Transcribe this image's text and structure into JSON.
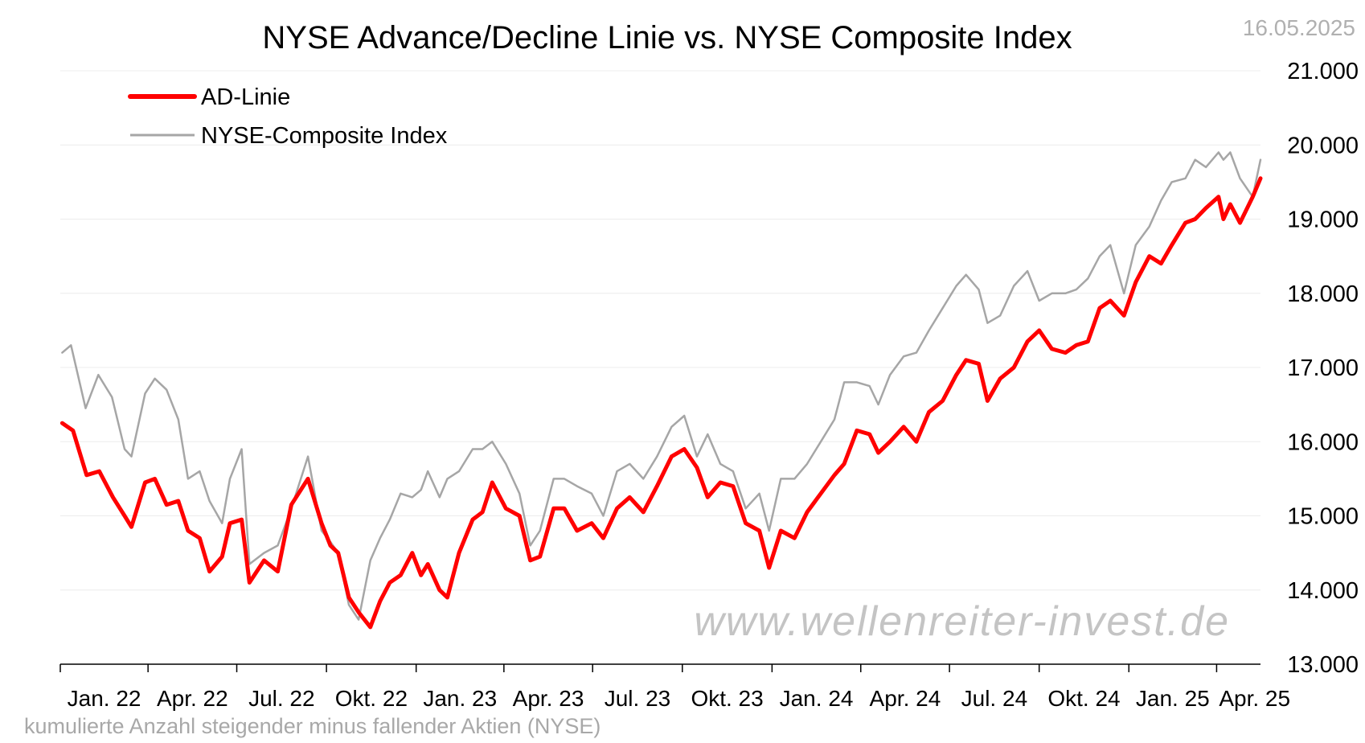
{
  "chart_data": {
    "type": "line",
    "title": "NYSE Advance/Decline Linie vs. NYSE Composite Index",
    "date_stamp": "16.05.2025",
    "watermark": "www.wellenreiter-invest.de",
    "footnote": "kumulierte Anzahl steigender minus fallender Aktien (NYSE)",
    "x_ticks": [
      "Jan. 22",
      "Apr. 22",
      "Jul. 22",
      "Okt. 22",
      "Jan. 23",
      "Apr. 23",
      "Jul. 23",
      "Okt. 23",
      "Jan. 24",
      "Apr. 24",
      "Jul. 24",
      "Okt. 24",
      "Jan. 25",
      "Apr. 25"
    ],
    "y_ticks": [
      "13.000",
      "14.000",
      "15.000",
      "16.000",
      "17.000",
      "18.000",
      "19.000",
      "20.000",
      "21.000"
    ],
    "ylim": [
      13000,
      21000
    ],
    "xlim": [
      "2022-01-01",
      "2025-05-16"
    ],
    "grid": "horizontal",
    "legend_position": "top-left",
    "series": [
      {
        "name": "AD-Linie",
        "color": "#ff0000",
        "values": [
          [
            "2022-01-03",
            16250
          ],
          [
            "2022-01-14",
            16150
          ],
          [
            "2022-01-28",
            15550
          ],
          [
            "2022-02-10",
            15600
          ],
          [
            "2022-02-24",
            15250
          ],
          [
            "2022-03-08",
            15000
          ],
          [
            "2022-03-15",
            14850
          ],
          [
            "2022-03-29",
            15450
          ],
          [
            "2022-04-08",
            15500
          ],
          [
            "2022-04-20",
            15150
          ],
          [
            "2022-05-02",
            15200
          ],
          [
            "2022-05-12",
            14800
          ],
          [
            "2022-05-24",
            14700
          ],
          [
            "2022-06-03",
            14250
          ],
          [
            "2022-06-16",
            14450
          ],
          [
            "2022-06-24",
            14900
          ],
          [
            "2022-07-06",
            14950
          ],
          [
            "2022-07-14",
            14100
          ],
          [
            "2022-07-29",
            14400
          ],
          [
            "2022-08-12",
            14250
          ],
          [
            "2022-08-26",
            15150
          ],
          [
            "2022-09-12",
            15500
          ],
          [
            "2022-09-26",
            14900
          ],
          [
            "2022-10-05",
            14600
          ],
          [
            "2022-10-13",
            14500
          ],
          [
            "2022-10-24",
            13900
          ],
          [
            "2022-11-03",
            13700
          ],
          [
            "2022-11-15",
            13500
          ],
          [
            "2022-11-25",
            13850
          ],
          [
            "2022-12-05",
            14100
          ],
          [
            "2022-12-16",
            14200
          ],
          [
            "2022-12-28",
            14500
          ],
          [
            "2023-01-06",
            14200
          ],
          [
            "2023-01-13",
            14350
          ],
          [
            "2023-01-25",
            14000
          ],
          [
            "2023-02-02",
            13900
          ],
          [
            "2023-02-14",
            14500
          ],
          [
            "2023-02-28",
            14950
          ],
          [
            "2023-03-10",
            15050
          ],
          [
            "2023-03-20",
            15450
          ],
          [
            "2023-04-03",
            15100
          ],
          [
            "2023-04-17",
            15000
          ],
          [
            "2023-04-28",
            14400
          ],
          [
            "2023-05-08",
            14450
          ],
          [
            "2023-05-22",
            15100
          ],
          [
            "2023-06-02",
            15100
          ],
          [
            "2023-06-15",
            14800
          ],
          [
            "2023-06-30",
            14900
          ],
          [
            "2023-07-12",
            14700
          ],
          [
            "2023-07-26",
            15100
          ],
          [
            "2023-08-08",
            15250
          ],
          [
            "2023-08-22",
            15050
          ],
          [
            "2023-09-05",
            15400
          ],
          [
            "2023-09-20",
            15800
          ],
          [
            "2023-10-03",
            15900
          ],
          [
            "2023-10-16",
            15650
          ],
          [
            "2023-10-27",
            15250
          ],
          [
            "2023-11-09",
            15450
          ],
          [
            "2023-11-22",
            15400
          ],
          [
            "2023-12-05",
            14900
          ],
          [
            "2023-12-19",
            14800
          ],
          [
            "2023-12-29",
            14300
          ],
          [
            "2024-01-10",
            14800
          ],
          [
            "2024-01-24",
            14700
          ],
          [
            "2024-02-06",
            15050
          ],
          [
            "2024-02-20",
            15300
          ],
          [
            "2024-03-05",
            15550
          ],
          [
            "2024-03-15",
            15700
          ],
          [
            "2024-03-28",
            16150
          ],
          [
            "2024-04-10",
            16100
          ],
          [
            "2024-04-19",
            15850
          ],
          [
            "2024-05-01",
            16000
          ],
          [
            "2024-05-15",
            16200
          ],
          [
            "2024-05-28",
            16000
          ],
          [
            "2024-06-10",
            16400
          ],
          [
            "2024-06-24",
            16550
          ],
          [
            "2024-07-08",
            16900
          ],
          [
            "2024-07-18",
            17100
          ],
          [
            "2024-07-31",
            17050
          ],
          [
            "2024-08-09",
            16550
          ],
          [
            "2024-08-22",
            16850
          ],
          [
            "2024-09-05",
            17000
          ],
          [
            "2024-09-19",
            17350
          ],
          [
            "2024-10-01",
            17500
          ],
          [
            "2024-10-14",
            17250
          ],
          [
            "2024-10-28",
            17200
          ],
          [
            "2024-11-08",
            17300
          ],
          [
            "2024-11-20",
            17350
          ],
          [
            "2024-12-02",
            17800
          ],
          [
            "2024-12-13",
            17900
          ],
          [
            "2024-12-27",
            17700
          ],
          [
            "2025-01-08",
            18150
          ],
          [
            "2025-01-22",
            18500
          ],
          [
            "2025-02-03",
            18400
          ],
          [
            "2025-02-14",
            18650
          ],
          [
            "2025-02-28",
            18950
          ],
          [
            "2025-03-10",
            19000
          ],
          [
            "2025-03-21",
            19150
          ],
          [
            "2025-04-03",
            19300
          ],
          [
            "2025-04-08",
            19000
          ],
          [
            "2025-04-15",
            19200
          ],
          [
            "2025-04-25",
            18950
          ],
          [
            "2025-05-08",
            19300
          ],
          [
            "2025-05-16",
            19550
          ]
        ]
      },
      {
        "name": "NYSE-Composite Index",
        "color": "#a6a6a6",
        "values": [
          [
            "2022-01-03",
            17200
          ],
          [
            "2022-01-12",
            17300
          ],
          [
            "2022-01-27",
            16450
          ],
          [
            "2022-02-09",
            16900
          ],
          [
            "2022-02-23",
            16600
          ],
          [
            "2022-03-08",
            15900
          ],
          [
            "2022-03-15",
            15800
          ],
          [
            "2022-03-29",
            16650
          ],
          [
            "2022-04-08",
            16850
          ],
          [
            "2022-04-20",
            16700
          ],
          [
            "2022-05-02",
            16300
          ],
          [
            "2022-05-12",
            15500
          ],
          [
            "2022-05-24",
            15600
          ],
          [
            "2022-06-03",
            15200
          ],
          [
            "2022-06-16",
            14900
          ],
          [
            "2022-06-24",
            15500
          ],
          [
            "2022-07-06",
            15900
          ],
          [
            "2022-07-14",
            14350
          ],
          [
            "2022-07-29",
            14500
          ],
          [
            "2022-08-12",
            14600
          ],
          [
            "2022-08-26",
            15100
          ],
          [
            "2022-09-12",
            15800
          ],
          [
            "2022-09-26",
            14800
          ],
          [
            "2022-10-05",
            14650
          ],
          [
            "2022-10-13",
            14500
          ],
          [
            "2022-10-24",
            13800
          ],
          [
            "2022-11-03",
            13600
          ],
          [
            "2022-11-15",
            14400
          ],
          [
            "2022-11-25",
            14700
          ],
          [
            "2022-12-05",
            14950
          ],
          [
            "2022-12-16",
            15300
          ],
          [
            "2022-12-28",
            15250
          ],
          [
            "2023-01-06",
            15350
          ],
          [
            "2023-01-13",
            15600
          ],
          [
            "2023-01-25",
            15250
          ],
          [
            "2023-02-02",
            15500
          ],
          [
            "2023-02-14",
            15600
          ],
          [
            "2023-02-28",
            15900
          ],
          [
            "2023-03-10",
            15900
          ],
          [
            "2023-03-20",
            16000
          ],
          [
            "2023-04-03",
            15700
          ],
          [
            "2023-04-17",
            15300
          ],
          [
            "2023-04-28",
            14600
          ],
          [
            "2023-05-08",
            14800
          ],
          [
            "2023-05-22",
            15500
          ],
          [
            "2023-06-02",
            15500
          ],
          [
            "2023-06-15",
            15400
          ],
          [
            "2023-06-30",
            15300
          ],
          [
            "2023-07-12",
            15000
          ],
          [
            "2023-07-26",
            15600
          ],
          [
            "2023-08-08",
            15700
          ],
          [
            "2023-08-22",
            15500
          ],
          [
            "2023-09-05",
            15800
          ],
          [
            "2023-09-20",
            16200
          ],
          [
            "2023-10-03",
            16350
          ],
          [
            "2023-10-16",
            15800
          ],
          [
            "2023-10-27",
            16100
          ],
          [
            "2023-11-09",
            15700
          ],
          [
            "2023-11-22",
            15600
          ],
          [
            "2023-12-05",
            15100
          ],
          [
            "2023-12-19",
            15300
          ],
          [
            "2023-12-29",
            14800
          ],
          [
            "2024-01-10",
            15500
          ],
          [
            "2024-01-24",
            15500
          ],
          [
            "2024-02-06",
            15700
          ],
          [
            "2024-02-20",
            16000
          ],
          [
            "2024-03-05",
            16300
          ],
          [
            "2024-03-15",
            16800
          ],
          [
            "2024-03-28",
            16800
          ],
          [
            "2024-04-10",
            16750
          ],
          [
            "2024-04-19",
            16500
          ],
          [
            "2024-05-01",
            16900
          ],
          [
            "2024-05-15",
            17150
          ],
          [
            "2024-05-28",
            17200
          ],
          [
            "2024-06-10",
            17500
          ],
          [
            "2024-06-24",
            17800
          ],
          [
            "2024-07-08",
            18100
          ],
          [
            "2024-07-18",
            18250
          ],
          [
            "2024-07-31",
            18050
          ],
          [
            "2024-08-09",
            17600
          ],
          [
            "2024-08-22",
            17700
          ],
          [
            "2024-09-05",
            18100
          ],
          [
            "2024-09-19",
            18300
          ],
          [
            "2024-10-01",
            17900
          ],
          [
            "2024-10-14",
            18000
          ],
          [
            "2024-10-28",
            18000
          ],
          [
            "2024-11-08",
            18050
          ],
          [
            "2024-11-20",
            18200
          ],
          [
            "2024-12-02",
            18500
          ],
          [
            "2024-12-13",
            18650
          ],
          [
            "2024-12-27",
            18000
          ],
          [
            "2025-01-08",
            18650
          ],
          [
            "2025-01-22",
            18900
          ],
          [
            "2025-02-03",
            19250
          ],
          [
            "2025-02-14",
            19500
          ],
          [
            "2025-02-28",
            19550
          ],
          [
            "2025-03-10",
            19800
          ],
          [
            "2025-03-21",
            19700
          ],
          [
            "2025-04-03",
            19900
          ],
          [
            "2025-04-08",
            19800
          ],
          [
            "2025-04-15",
            19900
          ],
          [
            "2025-04-25",
            19550
          ],
          [
            "2025-05-08",
            19300
          ],
          [
            "2025-05-16",
            19800
          ]
        ]
      }
    ]
  }
}
